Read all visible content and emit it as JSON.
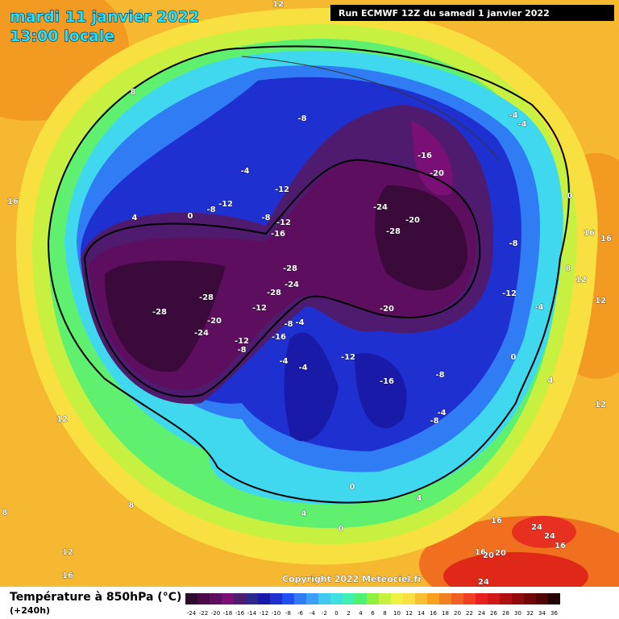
{
  "header": {
    "title": "mardi 11 janvier 2022",
    "time": "13:00 locale",
    "run": "Run ECMWF 12Z du samedi 1 janvier 2022"
  },
  "copyright": "Copyright 2022 Meteociel.fr",
  "legend": {
    "title": "Température à 850hPa (°C)",
    "subtitle": "(+240h)",
    "labels": [
      -24,
      -22,
      -20,
      -18,
      -16,
      -14,
      -12,
      -10,
      -8,
      -6,
      -4,
      -2,
      0,
      2,
      4,
      6,
      8,
      10,
      12,
      14,
      16,
      18,
      20,
      22,
      24,
      26,
      28,
      30,
      32,
      34,
      36
    ],
    "colors": [
      "#2d0b2a",
      "#4a0a46",
      "#5e0e5e",
      "#7a1075",
      "#4e1b6e",
      "#2a2a8a",
      "#1a1aa8",
      "#1f30d0",
      "#2050f0",
      "#2f7cf5",
      "#3aa0f5",
      "#40c8f0",
      "#3fe0e0",
      "#40f0b0",
      "#50f070",
      "#90f040",
      "#c8f040",
      "#f0f040",
      "#f8e040",
      "#f8c030",
      "#f8a020",
      "#f08020",
      "#f06020",
      "#f04020",
      "#e82020",
      "#d01818",
      "#b01010",
      "#900c0c",
      "#700808",
      "#500404",
      "#200000"
    ]
  },
  "map_labels": [
    "-8",
    "-16",
    "-20",
    "-24",
    "-20",
    "-28",
    "-12",
    "-12",
    "-8",
    "-8",
    "-12",
    "-16",
    "-28",
    "-24",
    "-28",
    "-28",
    "-12",
    "-28",
    "-20",
    "-24",
    "-8",
    "-4",
    "-12",
    "-8",
    "-16",
    "-20",
    "-12",
    "-16",
    "-8",
    "-4",
    "-8",
    "-4",
    "-4",
    "-12",
    "-8",
    "-4",
    "0",
    "-4",
    "-4",
    "0",
    "-4",
    "0",
    "4",
    "8",
    "12",
    "16",
    "16",
    "16",
    "12",
    "8",
    "12",
    "4",
    "12",
    "12",
    "8",
    "4",
    "0",
    "0",
    "4",
    "16",
    "24",
    "24",
    "16",
    "16",
    "20",
    "20",
    "24",
    "12",
    "16",
    "8"
  ]
}
